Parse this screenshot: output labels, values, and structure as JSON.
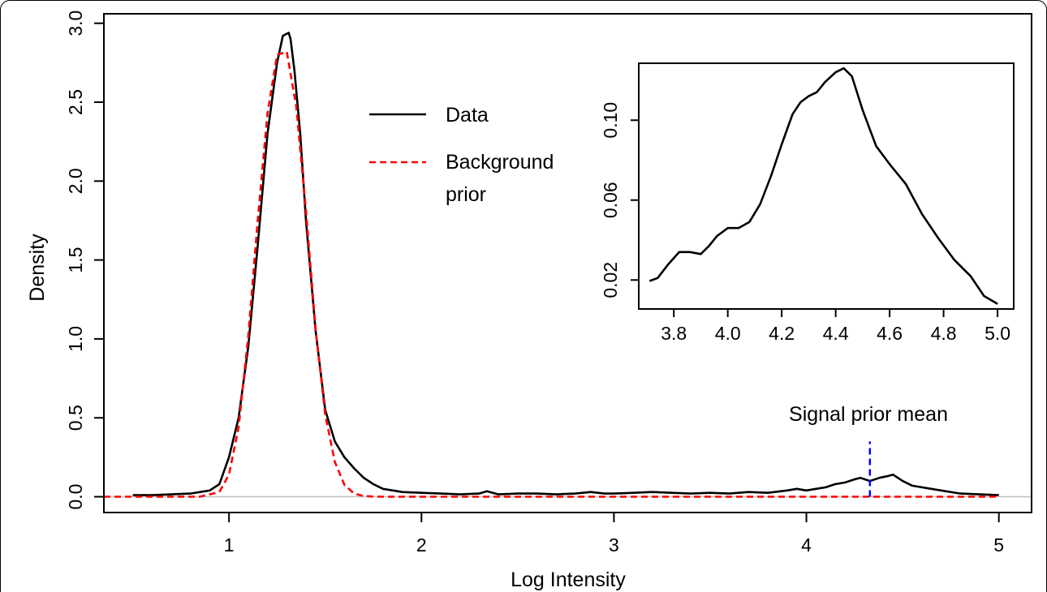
{
  "chart_data": [
    {
      "type": "line",
      "xlabel": "Log Intensity",
      "ylabel": "Density",
      "xlim": [
        0.35,
        5.17
      ],
      "ylim": [
        -0.1,
        3.06
      ],
      "x_ticks": [
        "1",
        "2",
        "3",
        "4",
        "5"
      ],
      "y_ticks": [
        "0.0",
        "0.5",
        "1.0",
        "1.5",
        "2.0",
        "2.5",
        "3.0"
      ],
      "legend": {
        "position": "top-center",
        "entries": [
          "Data",
          "Background prior"
        ]
      },
      "legend_lines": {
        "data": "Data",
        "bg1": "Background",
        "bg2": "prior"
      },
      "annotation": {
        "text": "Signal prior mean",
        "x": 4.33
      },
      "series": [
        {
          "name": "Data",
          "color": "#000000",
          "style": "solid",
          "x": [
            0.5,
            0.6,
            0.7,
            0.8,
            0.9,
            0.95,
            1.0,
            1.05,
            1.1,
            1.15,
            1.2,
            1.25,
            1.28,
            1.31,
            1.32,
            1.34,
            1.37,
            1.4,
            1.45,
            1.5,
            1.55,
            1.6,
            1.65,
            1.7,
            1.75,
            1.8,
            1.9,
            2.0,
            2.1,
            2.2,
            2.3,
            2.34,
            2.4,
            2.5,
            2.6,
            2.7,
            2.8,
            2.88,
            2.95,
            3.0,
            3.1,
            3.2,
            3.3,
            3.4,
            3.5,
            3.6,
            3.7,
            3.8,
            3.9,
            3.95,
            4.0,
            4.05,
            4.1,
            4.15,
            4.2,
            4.25,
            4.28,
            4.33,
            4.38,
            4.42,
            4.45,
            4.5,
            4.55,
            4.6,
            4.7,
            4.8,
            4.9,
            5.0
          ],
          "y": [
            0.01,
            0.01,
            0.015,
            0.02,
            0.04,
            0.08,
            0.25,
            0.5,
            0.95,
            1.6,
            2.3,
            2.75,
            2.92,
            2.94,
            2.9,
            2.7,
            2.3,
            1.75,
            1.05,
            0.55,
            0.35,
            0.25,
            0.18,
            0.12,
            0.08,
            0.05,
            0.03,
            0.025,
            0.02,
            0.015,
            0.02,
            0.035,
            0.015,
            0.02,
            0.02,
            0.015,
            0.02,
            0.03,
            0.02,
            0.02,
            0.025,
            0.03,
            0.025,
            0.02,
            0.025,
            0.02,
            0.03,
            0.025,
            0.04,
            0.05,
            0.04,
            0.05,
            0.06,
            0.08,
            0.09,
            0.11,
            0.12,
            0.1,
            0.12,
            0.13,
            0.14,
            0.1,
            0.07,
            0.06,
            0.04,
            0.02,
            0.015,
            0.01
          ]
        },
        {
          "name": "Background prior",
          "color": "#ff0000",
          "style": "dashed",
          "x": [
            0.35,
            0.5,
            0.7,
            0.85,
            0.95,
            1.0,
            1.05,
            1.1,
            1.15,
            1.2,
            1.25,
            1.3,
            1.35,
            1.4,
            1.45,
            1.5,
            1.55,
            1.6,
            1.65,
            1.7,
            1.75,
            1.8,
            2.0,
            3.0,
            4.0,
            5.0
          ],
          "y": [
            0,
            0,
            0,
            0.0005,
            0.03,
            0.14,
            0.44,
            1.02,
            1.76,
            2.43,
            2.8,
            2.82,
            2.47,
            1.81,
            1.06,
            0.52,
            0.22,
            0.075,
            0.02,
            0.005,
            0.001,
            0,
            0,
            0,
            0,
            0
          ]
        }
      ],
      "vline": {
        "x": 4.33,
        "color": "#0000ff",
        "style": "dashed",
        "y_range": [
          0,
          0.35
        ]
      }
    },
    {
      "type": "line",
      "title": "",
      "xlim": [
        3.67,
        5.06
      ],
      "ylim": [
        0.0055,
        0.1285
      ],
      "x_ticks": [
        "3.8",
        "4.0",
        "4.2",
        "4.4",
        "4.6",
        "4.8",
        "5.0"
      ],
      "y_ticks": [
        "0.02",
        "0.06",
        "0.10"
      ],
      "series": [
        {
          "color": "#000000",
          "style": "solid",
          "x": [
            3.71,
            3.74,
            3.78,
            3.82,
            3.86,
            3.9,
            3.93,
            3.96,
            4.0,
            4.04,
            4.08,
            4.12,
            4.16,
            4.2,
            4.24,
            4.27,
            4.3,
            4.33,
            4.36,
            4.4,
            4.43,
            4.46,
            4.5,
            4.55,
            4.6,
            4.66,
            4.72,
            4.78,
            4.84,
            4.9,
            4.95,
            5.0
          ],
          "y": [
            0.0195,
            0.021,
            0.028,
            0.034,
            0.034,
            0.033,
            0.037,
            0.042,
            0.046,
            0.046,
            0.049,
            0.058,
            0.072,
            0.088,
            0.103,
            0.109,
            0.112,
            0.114,
            0.119,
            0.124,
            0.126,
            0.122,
            0.105,
            0.087,
            0.078,
            0.068,
            0.053,
            0.041,
            0.03,
            0.022,
            0.012,
            0.008
          ]
        }
      ]
    }
  ]
}
